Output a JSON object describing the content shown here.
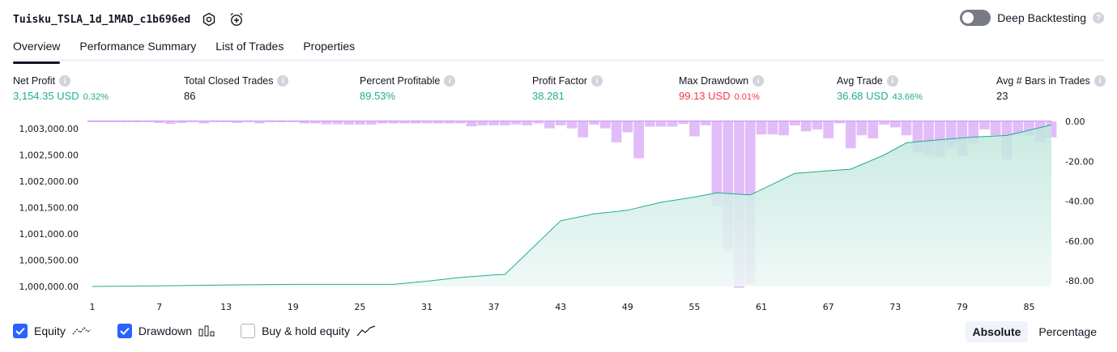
{
  "header": {
    "title": "Tuisku_TSLA_1d_1MAD_c1b696ed",
    "deep_backtesting_label": "Deep Backtesting"
  },
  "tabs": [
    {
      "label": "Overview"
    },
    {
      "label": "Performance Summary"
    },
    {
      "label": "List of Trades"
    },
    {
      "label": "Properties"
    }
  ],
  "metrics": {
    "net_profit": {
      "label": "Net Profit",
      "value": "3,154.35 USD",
      "sub": "0.32%"
    },
    "total_closed_trades": {
      "label": "Total Closed Trades",
      "value": "86"
    },
    "percent_profitable": {
      "label": "Percent Profitable",
      "value": "89.53%"
    },
    "profit_factor": {
      "label": "Profit Factor",
      "value": "38.281"
    },
    "max_drawdown": {
      "label": "Max Drawdown",
      "value": "99.13 USD",
      "sub": "0.01%"
    },
    "avg_trade": {
      "label": "Avg Trade",
      "value": "36.68 USD",
      "sub": "43.66%"
    },
    "avg_bars": {
      "label": "Avg # Bars in Trades",
      "value": "23"
    }
  },
  "colors": {
    "positive": "#22ab94",
    "negative": "#f23645",
    "equity_line": "#22ab94",
    "equity_fill_top": "#bfe6dc",
    "equity_fill_bottom": "#edf8f5",
    "drawdown_bar": "#ce93f5",
    "accent": "#2962ff"
  },
  "chart_data": {
    "type": "area",
    "left_axis": {
      "ylim": [
        1000000,
        1003000
      ],
      "ticks": [
        "1,000,000.00",
        "1,000,500.00",
        "1,001,000.00",
        "1,001,500.00",
        "1,002,000.00",
        "1,002,500.00",
        "1,003,000.00"
      ]
    },
    "right_axis": {
      "ylim": [
        -80,
        0
      ],
      "ticks": [
        "-80.00",
        "-60.00",
        "-40.00",
        "-20.00",
        "0.00"
      ]
    },
    "x_ticks": [
      "1",
      "7",
      "13",
      "19",
      "25",
      "31",
      "37",
      "43",
      "49",
      "55",
      "61",
      "67",
      "73",
      "79",
      "85"
    ],
    "x_range": [
      1,
      87
    ],
    "equity": {
      "x": [
        1,
        7,
        13,
        19,
        25,
        28,
        31,
        34,
        37,
        38,
        43,
        46,
        49,
        52,
        55,
        57,
        60,
        64,
        67,
        69,
        72,
        74,
        77,
        80,
        83,
        85,
        87
      ],
      "y": [
        1000000,
        1000010,
        1000030,
        1000040,
        1000040,
        1000040,
        1000100,
        1000170,
        1000220,
        1000230,
        1001250,
        1001380,
        1001450,
        1001600,
        1001700,
        1001780,
        1001740,
        1002150,
        1002200,
        1002230,
        1002500,
        1002730,
        1002790,
        1002840,
        1002870,
        1002970,
        1003070
      ]
    },
    "drawdown": {
      "x": [
        1,
        2,
        3,
        4,
        5,
        6,
        7,
        8,
        9,
        10,
        11,
        12,
        13,
        14,
        15,
        16,
        17,
        18,
        19,
        20,
        21,
        22,
        23,
        24,
        25,
        26,
        27,
        28,
        29,
        30,
        31,
        32,
        33,
        34,
        35,
        36,
        37,
        38,
        39,
        40,
        41,
        42,
        43,
        44,
        45,
        46,
        47,
        48,
        49,
        50,
        51,
        52,
        53,
        54,
        55,
        56,
        57,
        58,
        59,
        60,
        61,
        62,
        63,
        64,
        65,
        66,
        67,
        68,
        69,
        70,
        71,
        72,
        73,
        74,
        75,
        76,
        77,
        78,
        79,
        80,
        81,
        82,
        83,
        84,
        85,
        86,
        87
      ],
      "y": [
        -0.3,
        -0.3,
        -0.3,
        -0.3,
        -0.3,
        -0.3,
        -0.8,
        -1.2,
        -0.8,
        -0.3,
        -1.0,
        -0.3,
        -0.3,
        -0.8,
        -0.3,
        -1.0,
        -0.3,
        -0.3,
        -0.3,
        -1.0,
        -1.0,
        -1.4,
        -1.4,
        -1.6,
        -1.6,
        -1.6,
        -1.0,
        -1.0,
        -1.0,
        -1.0,
        -1.0,
        -1.0,
        -1.0,
        -1.0,
        -2.5,
        -2.0,
        -2.0,
        -2.0,
        -1.5,
        -2.0,
        -1.0,
        -3.5,
        -2.0,
        -3.5,
        -8.0,
        -1.6,
        -3.5,
        -10.5,
        -5.5,
        -18.5,
        -2.6,
        -2.6,
        -2.6,
        -1.2,
        -7.5,
        -2.0,
        -42.5,
        -65.0,
        -83.5,
        -81.5,
        -6.5,
        -6.5,
        -7.0,
        -2.0,
        -5.0,
        -4.0,
        -8.5,
        -1.0,
        -13.5,
        -7.0,
        -8.5,
        -1.6,
        -3.0,
        -7.0,
        -15.5,
        -17.0,
        -18.0,
        -13.5,
        -17.5,
        -11.0,
        -4.0,
        -7.0,
        -19.0,
        -7.0,
        -7.0,
        -10.5,
        -8.0
      ]
    },
    "legend": [
      {
        "name": "Equity",
        "checked": true
      },
      {
        "name": "Drawdown",
        "checked": true
      },
      {
        "name": "Buy & hold equity",
        "checked": false
      }
    ],
    "grid": false
  },
  "mode_toggle": {
    "absolute_label": "Absolute",
    "percentage_label": "Percentage",
    "selected": "Absolute"
  }
}
